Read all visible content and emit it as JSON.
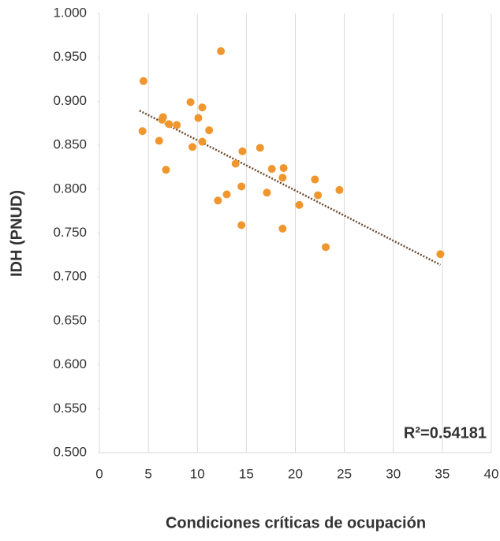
{
  "chart_data": {
    "type": "scatter",
    "x_label": "Condiciones críticas de ocupación",
    "y_label": "IDH (PNUD)",
    "annotation": "R²=0.54181",
    "series": [
      {
        "color": "#f0962e",
        "x": [
          4.5,
          4.4,
          6.1,
          6.5,
          6.4,
          7.1,
          7.9,
          6.8,
          9.3,
          9.5,
          10.1,
          10.5,
          10.5,
          11.2,
          12.4,
          12.1,
          13.0,
          13.9,
          14.6,
          14.5,
          14.5,
          16.4,
          17.6,
          17.1,
          18.8,
          18.7,
          18.7,
          20.4,
          22.0,
          22.3,
          24.5,
          23.1,
          34.8
        ],
        "values": [
          0.923,
          0.866,
          0.855,
          0.882,
          0.879,
          0.874,
          0.873,
          0.822,
          0.899,
          0.848,
          0.881,
          0.893,
          0.854,
          0.867,
          0.957,
          0.787,
          0.794,
          0.829,
          0.843,
          0.803,
          0.759,
          0.847,
          0.823,
          0.796,
          0.824,
          0.813,
          0.755,
          0.782,
          0.811,
          0.793,
          0.799,
          0.734,
          0.726
        ]
      }
    ],
    "trendline": true,
    "trendline_color": "#6b4a2f",
    "xlim": [
      0,
      40
    ],
    "xticks": [
      0,
      5,
      10,
      15,
      20,
      25,
      30,
      35,
      40
    ],
    "ylim": [
      0.5,
      1.0
    ],
    "yticks": [
      {
        "value": 0.5,
        "label": "0.500"
      },
      {
        "value": 0.55,
        "label": "0.550"
      },
      {
        "value": 0.6,
        "label": "0.600"
      },
      {
        "value": 0.65,
        "label": "0.650"
      },
      {
        "value": 0.7,
        "label": "0.700"
      },
      {
        "value": 0.75,
        "label": "0.750"
      },
      {
        "value": 0.8,
        "label": "0.800"
      },
      {
        "value": 0.85,
        "label": "0.850"
      },
      {
        "value": 0.9,
        "label": "0.900"
      },
      {
        "value": 0.95,
        "label": "0.950"
      },
      {
        "value": 1.0,
        "label": "1.000"
      }
    ],
    "grid": "x"
  }
}
